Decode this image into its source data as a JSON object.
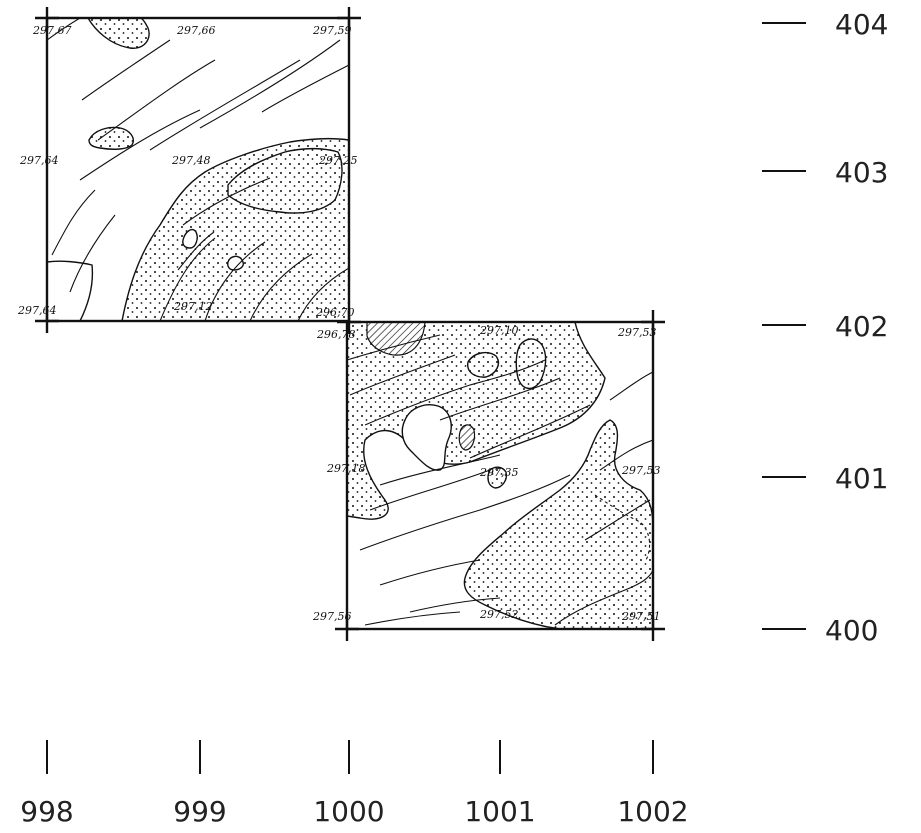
{
  "left_axis_labels": [
    "404",
    "403",
    "402",
    "401",
    "400"
  ],
  "bottom_axis_labels": [
    "998",
    "999",
    "1000",
    "1001",
    "1002"
  ],
  "elevations_upper_square": {
    "nw": "297,67",
    "n_mid": "297,66",
    "ne": "297,59",
    "w_mid": "297,64",
    "center": "297,48",
    "e_mid": "297,25",
    "sw": "297,64",
    "s_mid": "297,12",
    "se": "296,70"
  },
  "elevations_lower_square": {
    "nw": "296,78",
    "n_mid": "297,10",
    "ne": "297,53",
    "w_mid": "297,18",
    "center": "297,35",
    "e_mid": "297,53",
    "sw": "297,56",
    "s_mid": "297,52",
    "se": "297,51"
  }
}
